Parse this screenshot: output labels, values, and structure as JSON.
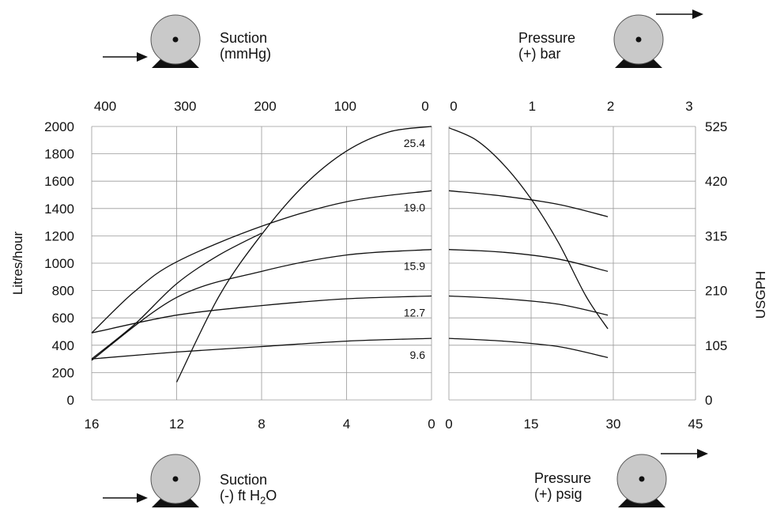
{
  "pump_labels": {
    "suction_mmhg": {
      "line1": "Suction",
      "line2": "(mmHg)"
    },
    "pressure_bar": {
      "line1": "Pressure",
      "line2": "(+) bar"
    },
    "suction_ft": {
      "line1": "Suction",
      "line2_prefix": "(-) ft H",
      "line2_sub": "2",
      "line2_suffix": "O"
    },
    "pressure_psig": {
      "line1": "Pressure",
      "line2": "(+) psig"
    }
  },
  "colors": {
    "line": "#111111",
    "grid": "#9a9a9a",
    "pump_body": "#c9c9c9",
    "pump_base": "#111111"
  },
  "chart_data": {
    "type": "line",
    "ylabel": "Litres/hour",
    "ylabel_right": "USGPH",
    "ylim": [
      0,
      2000
    ],
    "yticks": [
      0,
      200,
      400,
      600,
      800,
      1000,
      1200,
      1400,
      1600,
      1800,
      2000
    ],
    "yticks_right": [
      "0",
      "105",
      "210",
      "315",
      "420",
      "525"
    ],
    "suction_panel": {
      "xlim": [
        16,
        0
      ],
      "xticks_bottom": [
        "16",
        "12",
        "8",
        "4",
        "0"
      ],
      "xticks_top": [
        "400",
        "300",
        "200",
        "100",
        "0"
      ],
      "series": [
        {
          "name": "25.4",
          "points": [
            [
              12,
              130
            ],
            [
              10,
              760
            ],
            [
              8,
              1210
            ],
            [
              6,
              1570
            ],
            [
              4,
              1820
            ],
            [
              2,
              1960
            ],
            [
              0,
              2000
            ]
          ]
        },
        {
          "name": "19.0",
          "points": [
            [
              16,
              490
            ],
            [
              14,
              790
            ],
            [
              12,
              1010
            ],
            [
              8,
              1270
            ],
            [
              4,
              1450
            ],
            [
              0,
              1530
            ]
          ]
        },
        {
          "name": "15.9",
          "points": [
            [
              16,
              290
            ],
            [
              12,
              750
            ],
            [
              8,
              940
            ],
            [
              4,
              1060
            ],
            [
              0,
              1100
            ]
          ]
        },
        {
          "name": "12.7",
          "points": [
            [
              16,
              490
            ],
            [
              12,
              620
            ],
            [
              8,
              690
            ],
            [
              4,
              740
            ],
            [
              0,
              760
            ]
          ]
        },
        {
          "name": "9.6",
          "points": [
            [
              16,
              300
            ],
            [
              12,
              350
            ],
            [
              8,
              390
            ],
            [
              4,
              430
            ],
            [
              0,
              450
            ]
          ]
        },
        {
          "name": "",
          "points": [
            [
              16,
              300
            ],
            [
              14,
              550
            ],
            [
              12,
              850
            ],
            [
              10,
              1060
            ],
            [
              8,
              1220
            ]
          ]
        }
      ]
    },
    "pressure_panel": {
      "xlim": [
        0,
        45
      ],
      "xticks_bottom": [
        "0",
        "15",
        "30",
        "45"
      ],
      "xticks_top": [
        "0",
        "1",
        "2",
        "3"
      ],
      "series": [
        {
          "name": "25.4",
          "points": [
            [
              0,
              1990
            ],
            [
              5,
              1900
            ],
            [
              10,
              1720
            ],
            [
              15,
              1470
            ],
            [
              20,
              1150
            ],
            [
              25,
              760
            ],
            [
              29,
              520
            ]
          ]
        },
        {
          "name": "19.0",
          "points": [
            [
              0,
              1530
            ],
            [
              10,
              1490
            ],
            [
              20,
              1430
            ],
            [
              29,
              1340
            ]
          ]
        },
        {
          "name": "15.9",
          "points": [
            [
              0,
              1100
            ],
            [
              10,
              1080
            ],
            [
              20,
              1030
            ],
            [
              29,
              940
            ]
          ]
        },
        {
          "name": "12.7",
          "points": [
            [
              0,
              760
            ],
            [
              10,
              740
            ],
            [
              20,
              700
            ],
            [
              29,
              620
            ]
          ]
        },
        {
          "name": "9.6",
          "points": [
            [
              0,
              450
            ],
            [
              10,
              430
            ],
            [
              20,
              390
            ],
            [
              29,
              310
            ]
          ]
        }
      ]
    }
  }
}
